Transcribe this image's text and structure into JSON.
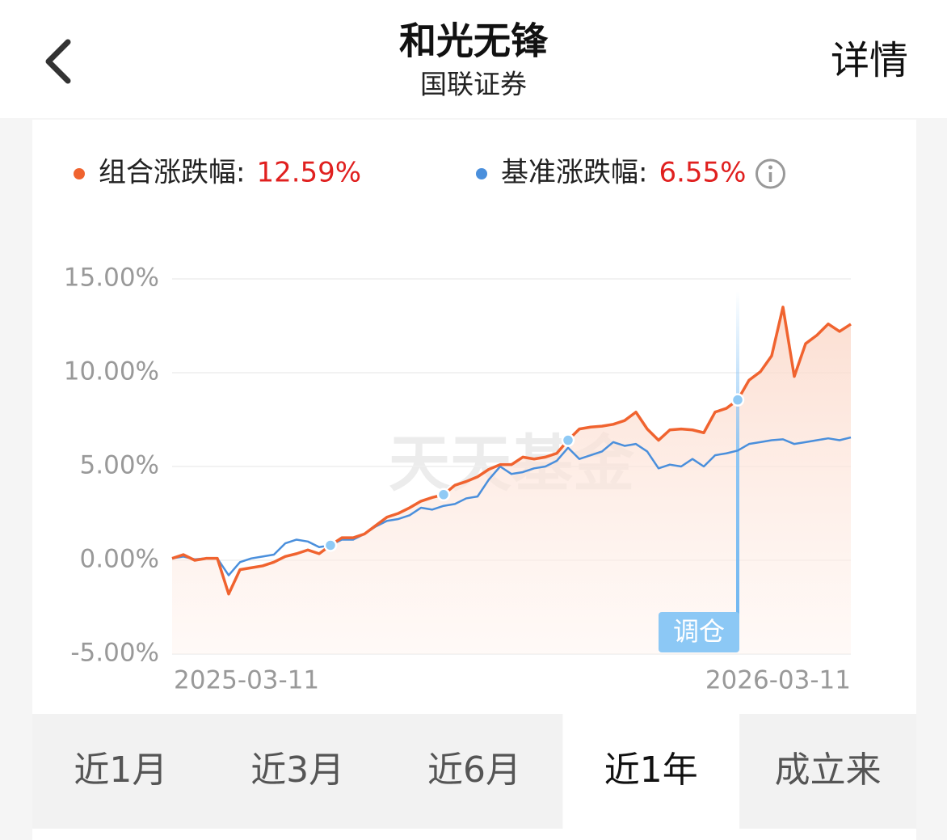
{
  "header": {
    "title": "和光无锋",
    "subtitle": "国联证券",
    "action": "详情"
  },
  "chart_data": {
    "type": "line",
    "watermark": "天天基金",
    "categories": [
      "2025-03-11",
      null,
      null,
      null,
      null,
      null,
      null,
      null,
      null,
      null,
      null,
      null,
      null,
      null,
      null,
      null,
      null,
      null,
      null,
      null,
      null,
      null,
      null,
      null,
      null,
      null,
      null,
      null,
      null,
      null,
      null,
      null,
      null,
      null,
      null,
      null,
      null,
      null,
      null,
      null,
      null,
      null,
      null,
      null,
      null,
      null,
      null,
      null,
      null,
      null,
      null,
      null,
      null,
      null,
      null,
      null,
      null,
      null,
      null,
      null,
      "2026-03-11"
    ],
    "series": [
      {
        "name": "组合涨跌幅:",
        "color": "#f0632f",
        "change": {
          "value": 12.59,
          "label": "12.59%"
        },
        "values": [
          0.1,
          0.3,
          0,
          0.1,
          0.1,
          -1.8,
          -0.5,
          -0.4,
          -0.3,
          -0.1,
          0.2,
          0.35,
          0.55,
          0.35,
          0.8,
          1.2,
          1.2,
          1.4,
          1.85,
          2.3,
          2.5,
          2.8,
          3.15,
          3.35,
          3.5,
          4.0,
          4.2,
          4.45,
          4.85,
          5.1,
          5.1,
          5.5,
          5.4,
          5.5,
          5.7,
          6.4,
          7.0,
          7.1,
          7.15,
          7.25,
          7.45,
          7.9,
          7.0,
          6.4,
          6.95,
          7.0,
          6.95,
          6.8,
          7.9,
          8.1,
          8.55,
          9.6,
          10.05,
          10.9,
          13.5,
          9.8,
          11.55,
          12.0,
          12.6,
          12.2,
          12.59
        ]
      },
      {
        "name": "基准涨跌幅:",
        "color": "#4a8fdc",
        "change": {
          "value": 6.55,
          "label": "6.55%"
        },
        "values": [
          0.1,
          0.2,
          0.05,
          0.1,
          0.1,
          -0.8,
          -0.1,
          0.1,
          0.2,
          0.3,
          0.9,
          1.1,
          1.0,
          0.7,
          0.8,
          1.1,
          1.1,
          1.4,
          1.8,
          2.1,
          2.2,
          2.4,
          2.8,
          2.7,
          2.9,
          3.0,
          3.3,
          3.4,
          4.3,
          5.0,
          4.6,
          4.7,
          4.9,
          5.0,
          5.3,
          6.0,
          5.4,
          5.6,
          5.8,
          6.3,
          6.1,
          6.2,
          5.8,
          4.9,
          5.1,
          5.0,
          5.4,
          5.0,
          5.6,
          5.7,
          5.85,
          6.2,
          6.3,
          6.4,
          6.45,
          6.2,
          6.3,
          6.4,
          6.5,
          6.4,
          6.55
        ]
      }
    ],
    "rebalance_points": [
      14,
      24,
      35,
      50
    ],
    "annotation": {
      "text": "调仓",
      "index": 50
    },
    "ylim": [
      -5,
      15
    ],
    "yticks": [
      {
        "value": -5,
        "label": "-5.00%"
      },
      {
        "value": 0,
        "label": "0.00%"
      },
      {
        "value": 5,
        "label": "5.00%"
      },
      {
        "value": 10,
        "label": "10.00%"
      },
      {
        "value": 15,
        "label": "15.00%"
      }
    ],
    "grid": true
  },
  "tabs": {
    "items": [
      "近1月",
      "近3月",
      "近6月",
      "近1年",
      "成立来"
    ],
    "active": 3
  }
}
